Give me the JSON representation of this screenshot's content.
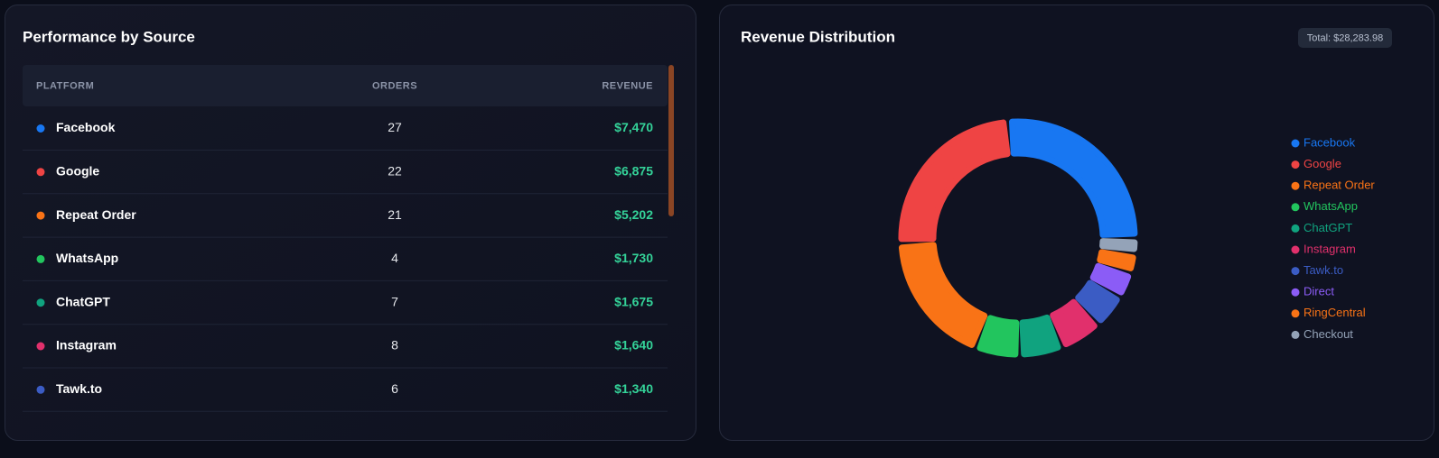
{
  "left_panel": {
    "title": "Performance by Source",
    "table": {
      "columns": [
        "PLATFORM",
        "ORDERS",
        "REVENUE"
      ],
      "rows": [
        {
          "color": "#1877f2",
          "cells": [
            "Facebook",
            "27",
            "$7,470"
          ]
        },
        {
          "color": "#ef4444",
          "cells": [
            "Google",
            "22",
            "$6,875"
          ]
        },
        {
          "color": "#f97316",
          "cells": [
            "Repeat Order",
            "21",
            "$5,202"
          ]
        },
        {
          "color": "#22c55e",
          "cells": [
            "WhatsApp",
            "4",
            "$1,730"
          ]
        },
        {
          "color": "#10a37f",
          "cells": [
            "ChatGPT",
            "7",
            "$1,675"
          ]
        },
        {
          "color": "#e1306c",
          "cells": [
            "Instagram",
            "8",
            "$1,640"
          ]
        },
        {
          "color": "#3b5cc4",
          "cells": [
            "Tawk.to",
            "6",
            "$1,340"
          ]
        }
      ]
    }
  },
  "chart_data": {
    "type": "donut",
    "title": "Revenue Distribution",
    "subtitle": "Total: $28,283.98",
    "categories": [
      "Facebook",
      "Google",
      "Repeat Order",
      "WhatsApp",
      "ChatGPT",
      "Instagram",
      "Tawk.to",
      "Direct",
      "RingCentral",
      "Checkout"
    ],
    "values": [
      7470,
      6875,
      5202,
      1730,
      1675,
      1640,
      1340,
      1000,
      760,
      591.98
    ],
    "colors": [
      "#1877f2",
      "#ef4444",
      "#f97316",
      "#22c55e",
      "#10a37f",
      "#e1306c",
      "#3b5cc4",
      "#8b5cf6",
      "#f97316",
      "#94a3b8"
    ],
    "legend": "right"
  }
}
